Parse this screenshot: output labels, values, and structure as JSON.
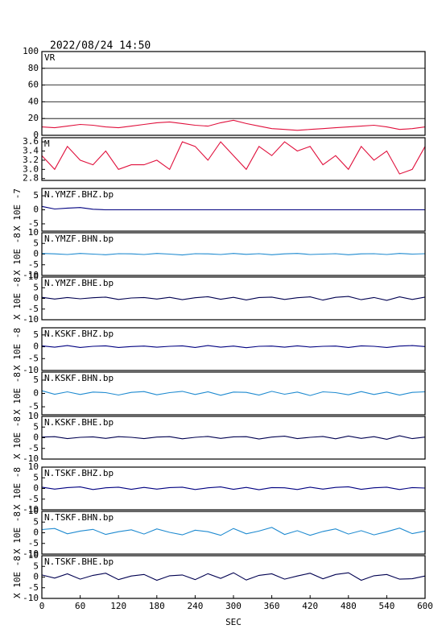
{
  "chart_data": [
    {
      "type": "line",
      "title": "2022/08/24 14:50",
      "grid": true,
      "xlim": [
        0,
        600
      ],
      "ylim": [
        0,
        100
      ],
      "yticks": [
        0,
        20,
        40,
        60,
        80,
        100
      ],
      "x": [
        0,
        20,
        40,
        60,
        80,
        100,
        120,
        140,
        160,
        180,
        200,
        220,
        240,
        260,
        280,
        300,
        320,
        340,
        360,
        380,
        400,
        420,
        440,
        460,
        480,
        500,
        520,
        540,
        560,
        580,
        600
      ],
      "series": [
        {
          "name": "VR",
          "color": "#e0103c",
          "values": [
            10,
            9,
            11,
            13,
            12,
            10,
            9,
            11,
            13,
            15,
            16,
            14,
            12,
            11,
            15,
            18,
            14,
            11,
            8,
            7,
            6,
            7,
            8,
            9,
            10,
            11,
            12,
            10,
            7,
            8,
            10
          ]
        }
      ]
    },
    {
      "type": "line",
      "grid": false,
      "xlim": [
        0,
        600
      ],
      "ylim": [
        2.76,
        3.69
      ],
      "yticks": [
        {
          "value": 2.8,
          "label": "2.8"
        },
        {
          "value": 3.0,
          "label": "3.0"
        },
        3.2,
        3.4,
        3.6
      ],
      "x": [
        0,
        20,
        40,
        60,
        80,
        100,
        120,
        140,
        160,
        180,
        200,
        220,
        240,
        260,
        280,
        300,
        320,
        340,
        360,
        380,
        400,
        420,
        440,
        460,
        480,
        500,
        520,
        540,
        560,
        580,
        600
      ],
      "series": [
        {
          "name": "M",
          "color": "#e0103c",
          "values": [
            3.3,
            3.0,
            3.5,
            3.2,
            3.1,
            3.4,
            3.0,
            3.1,
            3.1,
            3.2,
            3.0,
            3.6,
            3.5,
            3.2,
            3.6,
            3.3,
            3.0,
            3.5,
            3.3,
            3.6,
            3.4,
            3.5,
            3.1,
            3.3,
            3.0,
            3.5,
            3.2,
            3.4,
            2.9,
            3.0,
            3.5
          ]
        }
      ]
    },
    {
      "type": "line",
      "ylabel": "X 10E -7",
      "xlim": [
        0,
        600
      ],
      "ylim": [
        -7.6,
        7.6
      ],
      "yticks": [
        5,
        0,
        -5
      ],
      "x": [
        0,
        20,
        40,
        60,
        80,
        100,
        120,
        140,
        160,
        180,
        200,
        220,
        240,
        260,
        280,
        300,
        320,
        340,
        360,
        380,
        400,
        420,
        440,
        460,
        480,
        500,
        520,
        540,
        560,
        580,
        600
      ],
      "series": [
        {
          "name": "N.YMZF.BHZ.bp",
          "color": "#000080",
          "values": [
            1.2,
            0.3,
            0.6,
            0.8,
            0.2,
            0,
            0,
            0,
            0,
            0,
            0,
            0,
            0,
            0,
            0,
            0,
            0,
            0,
            0,
            0,
            0,
            0,
            0,
            0,
            0,
            0,
            0,
            0,
            0,
            0,
            0
          ]
        }
      ]
    },
    {
      "type": "line",
      "ylabel": "X 10E -8",
      "xlim": [
        0,
        600
      ],
      "ylim": [
        -10,
        10
      ],
      "yticks": [
        10,
        5,
        0,
        -5,
        -10
      ],
      "x": [
        0,
        20,
        40,
        60,
        80,
        100,
        120,
        140,
        160,
        180,
        200,
        220,
        240,
        260,
        280,
        300,
        320,
        340,
        360,
        380,
        400,
        420,
        440,
        460,
        480,
        500,
        520,
        540,
        560,
        580,
        600
      ],
      "series": [
        {
          "name": "N.YMZF.BHN.bp",
          "color": "#1e8ad0",
          "values": [
            0.3,
            0.1,
            -0.2,
            0.3,
            0,
            -0.3,
            0.2,
            0.1,
            -0.2,
            0.3,
            0,
            -0.4,
            0.2,
            0.1,
            -0.2,
            0.3,
            -0.1,
            0.2,
            -0.3,
            0.1,
            0.3,
            -0.2,
            0,
            0.2,
            -0.3,
            0.1,
            0.2,
            -0.2,
            0.3,
            0,
            0.2
          ]
        }
      ]
    },
    {
      "type": "line",
      "ylabel": "X 10E -8",
      "xlim": [
        0,
        600
      ],
      "ylim": [
        -10,
        10
      ],
      "yticks": [
        10,
        5,
        0,
        -5,
        -10
      ],
      "x": [
        0,
        20,
        40,
        60,
        80,
        100,
        120,
        140,
        160,
        180,
        200,
        220,
        240,
        260,
        280,
        300,
        320,
        340,
        360,
        380,
        400,
        420,
        440,
        460,
        480,
        500,
        520,
        540,
        560,
        580,
        600
      ],
      "series": [
        {
          "name": "N.YMZF.BHE.bp",
          "color": "#000050",
          "values": [
            0.5,
            -0.3,
            0.4,
            -0.2,
            0.3,
            0.6,
            -0.5,
            0.2,
            0.4,
            -0.3,
            0.5,
            -0.6,
            0.3,
            0.8,
            -0.4,
            0.5,
            -0.7,
            0.4,
            0.6,
            -0.5,
            0.3,
            0.7,
            -0.8,
            0.5,
            0.9,
            -0.6,
            0.4,
            -0.9,
            0.7,
            -0.5,
            0.6
          ]
        }
      ]
    },
    {
      "type": "line",
      "ylabel": "X 10E -8",
      "xlim": [
        0,
        600
      ],
      "ylim": [
        -10,
        8
      ],
      "yticks": [
        5,
        0,
        -5,
        -10
      ],
      "x": [
        0,
        20,
        40,
        60,
        80,
        100,
        120,
        140,
        160,
        180,
        200,
        220,
        240,
        260,
        280,
        300,
        320,
        340,
        360,
        380,
        400,
        420,
        440,
        460,
        480,
        500,
        520,
        540,
        560,
        580,
        600
      ],
      "series": [
        {
          "name": "N.KSKF.BHZ.bp",
          "color": "#000080",
          "values": [
            0.4,
            -0.2,
            0.5,
            -0.3,
            0.2,
            0.4,
            -0.3,
            0.1,
            0.3,
            -0.2,
            0.2,
            0.4,
            -0.3,
            0.5,
            -0.2,
            0.3,
            -0.4,
            0.2,
            0.3,
            -0.2,
            0.4,
            -0.1,
            0.2,
            0.3,
            -0.3,
            0.4,
            0.2,
            -0.3,
            0.3,
            0.5,
            0.1
          ]
        }
      ]
    },
    {
      "type": "line",
      "ylabel": "X 10E -8",
      "xlim": [
        0,
        600
      ],
      "ylim": [
        -8,
        8
      ],
      "yticks": [
        5,
        0,
        -5
      ],
      "x": [
        0,
        20,
        40,
        60,
        80,
        100,
        120,
        140,
        160,
        180,
        200,
        220,
        240,
        260,
        280,
        300,
        320,
        340,
        360,
        380,
        400,
        420,
        440,
        460,
        480,
        500,
        520,
        540,
        560,
        580,
        600
      ],
      "series": [
        {
          "name": "N.KSKF.BHN.bp",
          "color": "#1e8ad0",
          "values": [
            1.0,
            -0.3,
            0.6,
            -0.4,
            0.5,
            0.3,
            -0.6,
            0.4,
            0.7,
            -0.5,
            0.3,
            0.8,
            -0.4,
            0.6,
            -0.7,
            0.5,
            0.4,
            -0.6,
            0.8,
            -0.3,
            0.5,
            -0.8,
            0.6,
            0.3,
            -0.5,
            0.7,
            -0.4,
            0.5,
            -0.6,
            0.4,
            0.6
          ]
        }
      ]
    },
    {
      "type": "line",
      "ylabel": "X 10E -8",
      "xlim": [
        0,
        600
      ],
      "ylim": [
        -10,
        10
      ],
      "yticks": [
        10,
        5,
        0,
        -5,
        -10
      ],
      "x": [
        0,
        20,
        40,
        60,
        80,
        100,
        120,
        140,
        160,
        180,
        200,
        220,
        240,
        260,
        280,
        300,
        320,
        340,
        360,
        380,
        400,
        420,
        440,
        460,
        480,
        500,
        520,
        540,
        560,
        580,
        600
      ],
      "series": [
        {
          "name": "N.KSKF.BHE.bp",
          "color": "#000050",
          "values": [
            0.3,
            0.5,
            -0.4,
            0.2,
            0.4,
            -0.3,
            0.5,
            0.2,
            -0.4,
            0.3,
            0.5,
            -0.5,
            0.2,
            0.6,
            -0.3,
            0.4,
            0.5,
            -0.6,
            0.3,
            0.7,
            -0.4,
            0.2,
            0.6,
            -0.5,
            0.8,
            -0.3,
            0.5,
            -0.7,
            0.9,
            -0.4,
            0.3
          ]
        }
      ]
    },
    {
      "type": "line",
      "ylabel": "X 10E -8",
      "xlim": [
        0,
        600
      ],
      "ylim": [
        -10,
        10
      ],
      "yticks": [
        10,
        5,
        0,
        -5,
        -10
      ],
      "x": [
        0,
        20,
        40,
        60,
        80,
        100,
        120,
        140,
        160,
        180,
        200,
        220,
        240,
        260,
        280,
        300,
        320,
        340,
        360,
        380,
        400,
        420,
        440,
        460,
        480,
        500,
        520,
        540,
        560,
        580,
        600
      ],
      "series": [
        {
          "name": "N.TSKF.BHZ.bp",
          "color": "#000080",
          "values": [
            0.6,
            -0.3,
            0.4,
            0.7,
            -0.5,
            0.3,
            0.6,
            -0.4,
            0.5,
            -0.3,
            0.4,
            0.6,
            -0.5,
            0.3,
            0.7,
            -0.4,
            0.5,
            -0.6,
            0.4,
            0.3,
            -0.5,
            0.6,
            -0.3,
            0.5,
            0.8,
            -0.4,
            0.3,
            0.6,
            -0.5,
            0.4,
            0.2
          ]
        }
      ]
    },
    {
      "type": "line",
      "ylabel": "X 10E -8",
      "xlim": [
        0,
        600
      ],
      "ylim": [
        -10,
        10
      ],
      "yticks": [
        10,
        5,
        0,
        -5,
        -10
      ],
      "x": [
        0,
        20,
        40,
        60,
        80,
        100,
        120,
        140,
        160,
        180,
        200,
        220,
        240,
        260,
        280,
        300,
        320,
        340,
        360,
        380,
        400,
        420,
        440,
        460,
        480,
        500,
        520,
        540,
        560,
        580,
        600
      ],
      "series": [
        {
          "name": "N.TSKF.BHN.bp",
          "color": "#1e8ad0",
          "values": [
            1.5,
            2.0,
            -0.5,
            0.8,
            1.6,
            -0.8,
            0.5,
            1.4,
            -0.6,
            1.8,
            0.2,
            -1.0,
            1.2,
            0.5,
            -1.2,
            2.0,
            -0.5,
            0.8,
            2.5,
            -0.8,
            1.0,
            -1.2,
            0.6,
            1.8,
            -0.6,
            1.0,
            -1.0,
            0.5,
            2.2,
            -0.4,
            0.8
          ]
        }
      ]
    },
    {
      "type": "line",
      "ylabel": "X 10E -8",
      "xlim": [
        0,
        600
      ],
      "ylim": [
        -10,
        10
      ],
      "yticks": [
        10,
        5,
        0,
        -5,
        -10
      ],
      "x": [
        0,
        20,
        40,
        60,
        80,
        100,
        120,
        140,
        160,
        180,
        200,
        220,
        240,
        260,
        280,
        300,
        320,
        340,
        360,
        380,
        400,
        420,
        440,
        460,
        480,
        500,
        520,
        540,
        560,
        580,
        600
      ],
      "series": [
        {
          "name": "N.TSKF.BHE.bp",
          "color": "#000050",
          "values": [
            1.0,
            -0.5,
            1.5,
            -1.0,
            0.8,
            1.8,
            -1.2,
            0.5,
            1.2,
            -1.5,
            0.6,
            1.0,
            -1.2,
            1.6,
            -0.6,
            2.0,
            -1.4,
            0.8,
            1.5,
            -1.0,
            0.5,
            1.8,
            -0.8,
            1.2,
            2.0,
            -1.5,
            0.6,
            1.2,
            -1.0,
            -0.8,
            0.5
          ]
        }
      ],
      "xticks": [
        0,
        60,
        120,
        180,
        240,
        300,
        360,
        420,
        480,
        540,
        600
      ],
      "xlabel": "SEC"
    }
  ]
}
